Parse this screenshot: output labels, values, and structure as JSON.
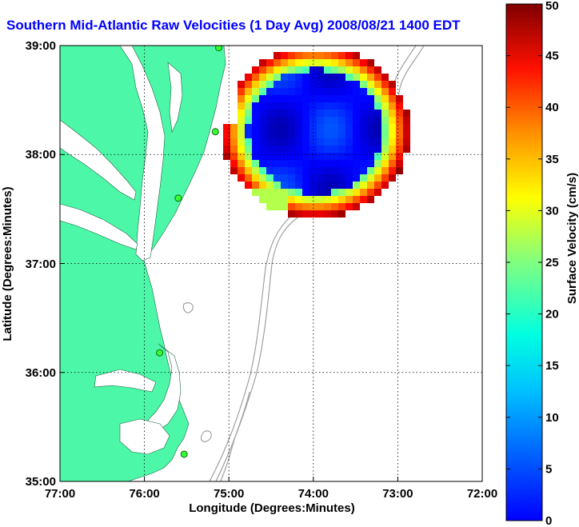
{
  "title": "Southern Mid-Atlantic Raw Velocities (1 Day Avg) 2008/08/21 1400 EDT",
  "x_axis": {
    "label": "Longitude (Degrees:Minutes)",
    "ticks": [
      "77:00",
      "76:00",
      "75:00",
      "74:00",
      "73:00",
      "72:00"
    ]
  },
  "y_axis": {
    "label": "Latitude (Degrees:Minutes)",
    "ticks": [
      "39:00",
      "38:00",
      "37:00",
      "36:00",
      "35:00"
    ]
  },
  "colorbar": {
    "label": "Surface Velocity (cm/s)",
    "ticks": [
      "50",
      "45",
      "40",
      "35",
      "30",
      "25",
      "20",
      "15",
      "10",
      "5",
      "0"
    ],
    "min": 0,
    "max": 50,
    "colormap": "jet"
  },
  "colors": {
    "land": "#4cf8a8",
    "water": "#ffffff",
    "title": "#0000ff",
    "bathymetry": "#a0a0a0",
    "station": "#33ff33"
  },
  "stations": [
    {
      "lon": -75.12,
      "lat": 38.98
    },
    {
      "lon": -75.16,
      "lat": 38.21
    },
    {
      "lon": -75.6,
      "lat": 37.6
    },
    {
      "lon": -75.82,
      "lat": 36.18
    },
    {
      "lon": -75.53,
      "lat": 35.25
    }
  ]
}
